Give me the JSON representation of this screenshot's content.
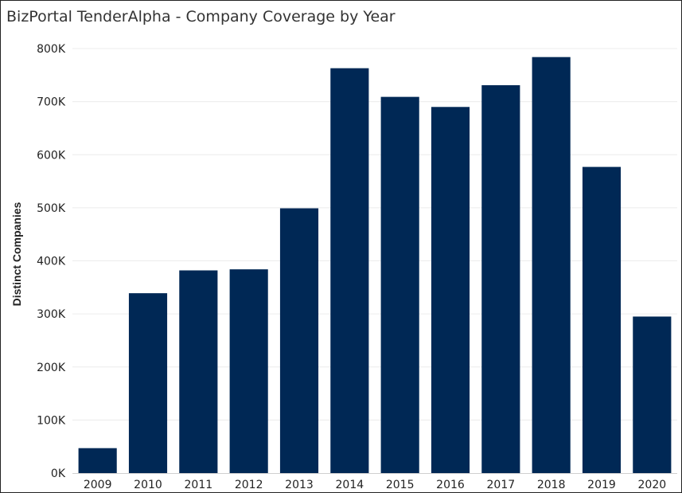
{
  "title": "BizPortal TenderAlpha - Company Coverage by Year",
  "colors": {
    "bar": "#002855",
    "grid": "#ececec",
    "axis": "#d0d0d0"
  },
  "chart_data": {
    "type": "bar",
    "title": "BizPortal TenderAlpha - Company Coverage by Year",
    "xlabel": "",
    "ylabel": "Distinct Companies",
    "categories": [
      "2009",
      "2010",
      "2011",
      "2012",
      "2013",
      "2014",
      "2015",
      "2016",
      "2017",
      "2018",
      "2019",
      "2020"
    ],
    "values": [
      47000,
      339000,
      382000,
      384000,
      499000,
      763000,
      709000,
      690000,
      731000,
      784000,
      577000,
      295000
    ],
    "ylim": [
      0,
      800000
    ],
    "yticks": [
      0,
      100000,
      200000,
      300000,
      400000,
      500000,
      600000,
      700000,
      800000
    ],
    "ytick_labels": [
      "0K",
      "100K",
      "200K",
      "300K",
      "400K",
      "500K",
      "600K",
      "700K",
      "800K"
    ],
    "grid": true,
    "legend": "none"
  }
}
